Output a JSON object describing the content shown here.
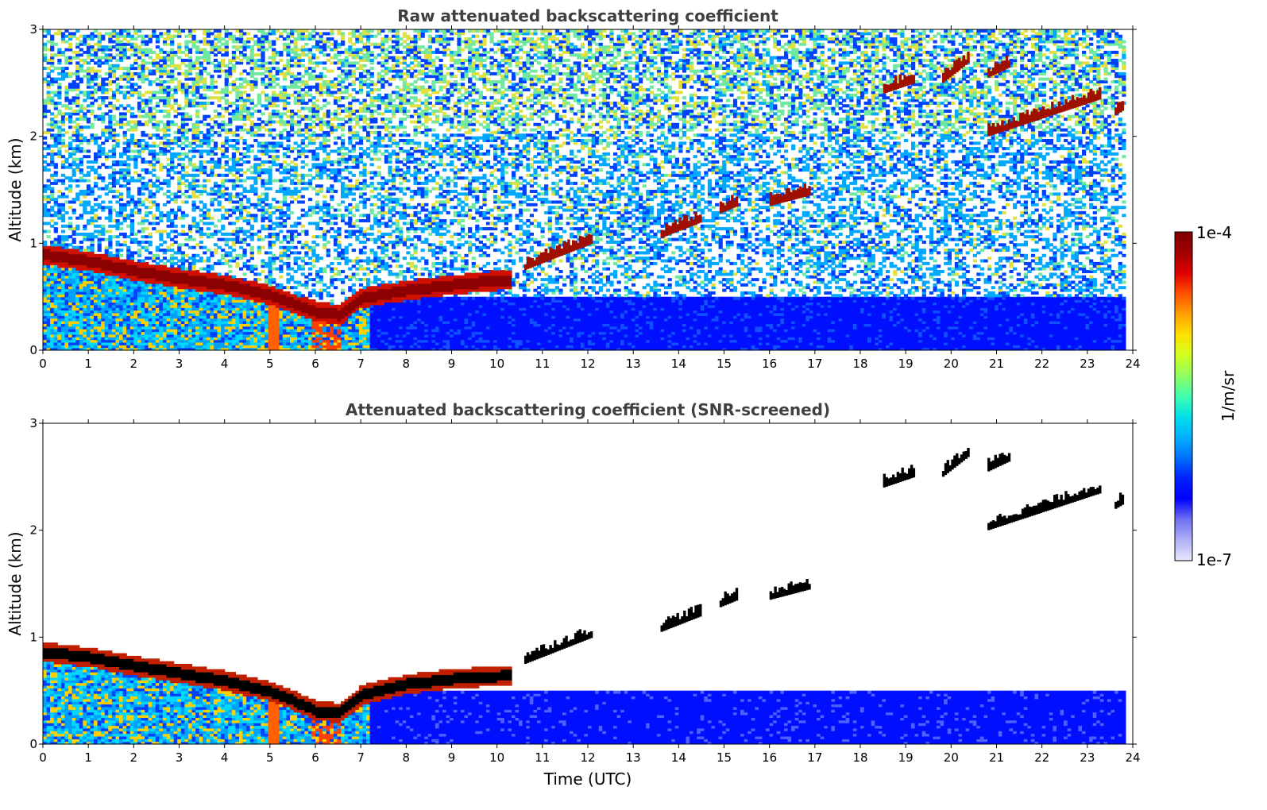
{
  "chart_data": [
    {
      "type": "heatmap",
      "title": "Raw attenuated backscattering coefficient",
      "xlabel": "",
      "ylabel": "Altitude (km)",
      "xlim": [
        0,
        24
      ],
      "ylim": [
        0,
        3
      ],
      "xticks": [
        0,
        1,
        2,
        3,
        4,
        5,
        6,
        7,
        8,
        9,
        10,
        11,
        12,
        13,
        14,
        15,
        16,
        17,
        18,
        19,
        20,
        21,
        22,
        23,
        24
      ],
      "yticks": [
        0,
        1,
        2,
        3
      ],
      "data_extent_x": [
        0,
        23.8
      ],
      "noise": "high",
      "boundary_layer_top_km": {
        "x": [
          0,
          1,
          2,
          3,
          4,
          5,
          6,
          6.5,
          7,
          8,
          9,
          10.2
        ],
        "y": [
          0.88,
          0.82,
          0.73,
          0.66,
          0.6,
          0.5,
          0.35,
          0.32,
          0.48,
          0.55,
          0.6,
          0.65
        ]
      },
      "cloud_features": [
        {
          "x": [
            10.6,
            12.1
          ],
          "y": [
            0.75,
            1.0
          ]
        },
        {
          "x": [
            13.6,
            14.5
          ],
          "y": [
            1.05,
            1.2
          ]
        },
        {
          "x": [
            14.9,
            15.3
          ],
          "y": [
            1.28,
            1.35
          ]
        },
        {
          "x": [
            16.0,
            16.9
          ],
          "y": [
            1.35,
            1.45
          ]
        },
        {
          "x": [
            18.5,
            19.2
          ],
          "y": [
            2.4,
            2.5
          ]
        },
        {
          "x": [
            19.8,
            20.4
          ],
          "y": [
            2.5,
            2.7
          ]
        },
        {
          "x": [
            20.8,
            21.3
          ],
          "y": [
            2.55,
            2.65
          ]
        },
        {
          "x": [
            20.8,
            23.3
          ],
          "y": [
            2.0,
            2.35
          ]
        },
        {
          "x": [
            23.6,
            23.8
          ],
          "y": [
            2.2,
            2.25
          ]
        }
      ]
    },
    {
      "type": "heatmap",
      "title": "Attenuated backscattering coefficient (SNR-screened)",
      "xlabel": "Time (UTC)",
      "ylabel": "Altitude (km)",
      "xlim": [
        0,
        24
      ],
      "ylim": [
        0,
        3
      ],
      "xticks": [
        0,
        1,
        2,
        3,
        4,
        5,
        6,
        7,
        8,
        9,
        10,
        11,
        12,
        13,
        14,
        15,
        16,
        17,
        18,
        19,
        20,
        21,
        22,
        23,
        24
      ],
      "yticks": [
        0,
        1,
        2,
        3
      ],
      "data_extent_x": [
        0,
        23.8
      ],
      "noise": "screened",
      "boundary_layer_top_km": {
        "x": [
          0,
          1,
          2,
          3,
          4,
          5,
          6,
          6.5,
          7,
          8,
          9,
          10.2
        ],
        "y": [
          0.85,
          0.8,
          0.72,
          0.65,
          0.58,
          0.48,
          0.3,
          0.28,
          0.45,
          0.55,
          0.6,
          0.63
        ]
      }
    }
  ],
  "colorbar": {
    "max_label": "1e-4",
    "min_label": "1e-7",
    "unit_label": "1/m/sr",
    "colors": [
      "#e8e8ff",
      "#b0b0f5",
      "#7070f0",
      "#0000ff",
      "#0020ff",
      "#0070ff",
      "#00b0ff",
      "#00e0e8",
      "#40ffb0",
      "#90ff60",
      "#d0ff20",
      "#ffe000",
      "#ffa000",
      "#ff5000",
      "#e00000",
      "#a00000",
      "#800000"
    ]
  }
}
